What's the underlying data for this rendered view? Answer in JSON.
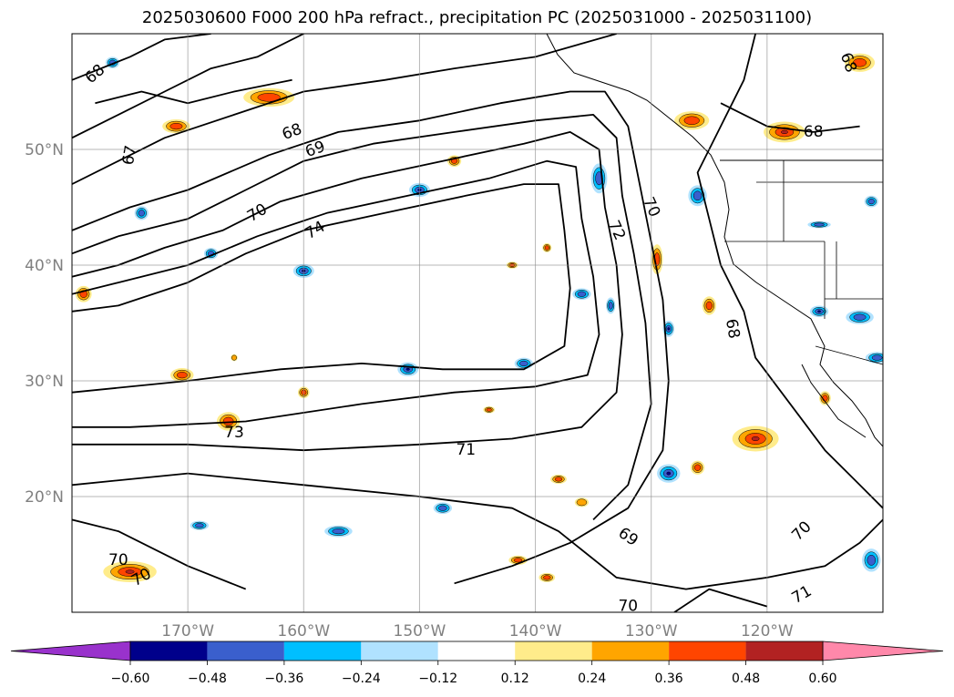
{
  "chart_data": {
    "type": "heatmap",
    "title": "2025030600 F000 200 hPa refract., precipitation PC (2025031000 - 2025031100)",
    "projection": "PlateCarree",
    "extent": {
      "lon": [
        -180,
        -110
      ],
      "lat": [
        10,
        60
      ]
    },
    "grid": true,
    "lat_ticks": [
      {
        "value": 20,
        "label": "20°N"
      },
      {
        "value": 30,
        "label": "30°N"
      },
      {
        "value": 40,
        "label": "40°N"
      },
      {
        "value": 50,
        "label": "50°N"
      }
    ],
    "lon_ticks": [
      {
        "value": -170,
        "label": "170°W"
      },
      {
        "value": -160,
        "label": "160°W"
      },
      {
        "value": -150,
        "label": "150°W"
      },
      {
        "value": -140,
        "label": "140°W"
      },
      {
        "value": -130,
        "label": "130°W"
      },
      {
        "value": -120,
        "label": "120°W"
      }
    ],
    "colorbar": {
      "levels": [
        -0.72,
        -0.6,
        -0.48,
        -0.36,
        -0.24,
        -0.12,
        0.12,
        0.24,
        0.36,
        0.48,
        0.6,
        0.72
      ],
      "tick_values": [
        -0.6,
        -0.48,
        -0.36,
        -0.24,
        -0.12,
        0.12,
        0.24,
        0.36,
        0.48,
        0.6
      ],
      "tick_labels": [
        "−0.60",
        "−0.48",
        "−0.36",
        "−0.24",
        "−0.12",
        "0.12",
        "0.24",
        "0.36",
        "0.48",
        "0.60"
      ],
      "under_color": "#9932cc",
      "over_color": "#ff88aa",
      "colors": [
        "#9932cc",
        "#00008b",
        "#3a5fcd",
        "#00bfff",
        "#b0e2ff",
        "#ffffff",
        "#ffec8b",
        "#ffa500",
        "#ff4500",
        "#b22222",
        "#ff88aa"
      ],
      "extend": "both"
    },
    "contour_labels": [
      {
        "text": "68",
        "lon": -178,
        "lat": 56.5,
        "rot": -40
      },
      {
        "text": "67",
        "lon": -175,
        "lat": 49.5,
        "rot": -80
      },
      {
        "text": "68",
        "lon": -161,
        "lat": 51.5,
        "rot": -20
      },
      {
        "text": "69",
        "lon": -159,
        "lat": 50.0,
        "rot": -20
      },
      {
        "text": "70",
        "lon": -164,
        "lat": 44.5,
        "rot": -30
      },
      {
        "text": "74",
        "lon": -159,
        "lat": 43.0,
        "rot": -30
      },
      {
        "text": "72",
        "lon": -133,
        "lat": 43.0,
        "rot": 65
      },
      {
        "text": "70",
        "lon": -130,
        "lat": 45.0,
        "rot": 65
      },
      {
        "text": "68",
        "lon": -116,
        "lat": 51.5,
        "rot": 0
      },
      {
        "text": "68",
        "lon": -113,
        "lat": 57.5,
        "rot": 70
      },
      {
        "text": "68",
        "lon": -123,
        "lat": 34.5,
        "rot": 80
      },
      {
        "text": "73",
        "lon": -166,
        "lat": 25.5,
        "rot": 0
      },
      {
        "text": "71",
        "lon": -146,
        "lat": 24.0,
        "rot": 0
      },
      {
        "text": "69",
        "lon": -132,
        "lat": 16.5,
        "rot": 35
      },
      {
        "text": "70",
        "lon": -132,
        "lat": 10.5,
        "rot": 0
      },
      {
        "text": "70",
        "lon": -117,
        "lat": 17.0,
        "rot": -45
      },
      {
        "text": "71",
        "lon": -117,
        "lat": 11.5,
        "rot": -30
      },
      {
        "text": "70",
        "lon": -176,
        "lat": 14.5,
        "rot": 0
      },
      {
        "text": "70",
        "lon": -174,
        "lat": 13.0,
        "rot": -30
      }
    ],
    "contour_lines": [
      [
        [
          -180,
          56
        ],
        [
          -175,
          58
        ],
        [
          -172,
          59.5
        ],
        [
          -168,
          60
        ]
      ],
      [
        [
          -180,
          51
        ],
        [
          -176,
          53
        ],
        [
          -172,
          55
        ],
        [
          -168,
          57
        ],
        [
          -164,
          58
        ],
        [
          -160,
          60
        ]
      ],
      [
        [
          -180,
          47
        ],
        [
          -176,
          49
        ],
        [
          -172,
          51
        ],
        [
          -166,
          53
        ],
        [
          -160,
          55
        ],
        [
          -153,
          56
        ],
        [
          -147,
          57
        ],
        [
          -140,
          58
        ],
        [
          -133,
          60
        ]
      ],
      [
        [
          -180,
          43
        ],
        [
          -175,
          45
        ],
        [
          -170,
          46.5
        ],
        [
          -163,
          49.5
        ],
        [
          -157,
          51.5
        ],
        [
          -150,
          52.5
        ],
        [
          -143,
          54
        ],
        [
          -137,
          55
        ],
        [
          -134,
          55
        ],
        [
          -132,
          52
        ],
        [
          -131,
          47
        ],
        [
          -130,
          42
        ],
        [
          -129,
          37
        ],
        [
          -128.5,
          30
        ],
        [
          -129,
          24
        ],
        [
          -132,
          19
        ],
        [
          -137,
          16
        ],
        [
          -142,
          14
        ],
        [
          -147,
          12.5
        ]
      ],
      [
        [
          -180,
          41
        ],
        [
          -176,
          42.5
        ],
        [
          -170,
          44
        ],
        [
          -165,
          46.5
        ],
        [
          -160,
          49
        ],
        [
          -154,
          50.5
        ],
        [
          -147,
          51.5
        ],
        [
          -140,
          52.5
        ],
        [
          -135,
          53
        ],
        [
          -133,
          51
        ],
        [
          -132.5,
          46
        ],
        [
          -131.5,
          41
        ],
        [
          -130.5,
          35
        ],
        [
          -130,
          28
        ],
        [
          -132,
          21
        ],
        [
          -135,
          18
        ]
      ],
      [
        [
          -180,
          39
        ],
        [
          -176,
          40
        ],
        [
          -172,
          41.5
        ],
        [
          -167,
          43
        ],
        [
          -162,
          45.5
        ],
        [
          -155,
          47.5
        ],
        [
          -148,
          49
        ],
        [
          -141,
          50.5
        ],
        [
          -137,
          51.5
        ],
        [
          -134.5,
          50
        ],
        [
          -134,
          45
        ],
        [
          -133,
          40
        ],
        [
          -132.5,
          34
        ],
        [
          -133,
          29
        ],
        [
          -136,
          26
        ],
        [
          -142,
          25
        ],
        [
          -150,
          24.5
        ],
        [
          -160,
          24
        ],
        [
          -170,
          24.5
        ],
        [
          -180,
          24.5
        ]
      ],
      [
        [
          -180,
          37.5
        ],
        [
          -176,
          38.5
        ],
        [
          -170,
          40
        ],
        [
          -164,
          42.5
        ],
        [
          -158,
          44.5
        ],
        [
          -151,
          46
        ],
        [
          -144,
          47.5
        ],
        [
          -139,
          49
        ],
        [
          -136.5,
          48.5
        ],
        [
          -136,
          44
        ],
        [
          -135,
          39
        ],
        [
          -134.5,
          34
        ],
        [
          -135.5,
          30.5
        ],
        [
          -140,
          29.5
        ],
        [
          -147,
          29
        ],
        [
          -155,
          28
        ],
        [
          -165,
          26.5
        ],
        [
          -175,
          26
        ],
        [
          -180,
          26
        ]
      ],
      [
        [
          -180,
          36
        ],
        [
          -176,
          36.5
        ],
        [
          -170,
          38.5
        ],
        [
          -165,
          41
        ],
        [
          -160,
          43
        ],
        [
          -153,
          44.5
        ],
        [
          -146,
          46
        ],
        [
          -141,
          47
        ],
        [
          -138,
          47
        ],
        [
          -137.5,
          43
        ],
        [
          -137,
          38
        ],
        [
          -137.5,
          33
        ],
        [
          -141,
          31
        ],
        [
          -148,
          31
        ],
        [
          -155,
          31.5
        ],
        [
          -162,
          31
        ],
        [
          -170,
          30
        ],
        [
          -180,
          29
        ]
      ],
      [
        [
          -178,
          54
        ],
        [
          -174,
          55
        ],
        [
          -170,
          54
        ],
        [
          -166,
          55
        ],
        [
          -161,
          56
        ]
      ],
      [
        [
          -121,
          60
        ],
        [
          -122,
          56
        ],
        [
          -124,
          52
        ],
        [
          -126,
          48
        ],
        [
          -125,
          44
        ],
        [
          -124,
          40
        ],
        [
          -122,
          36
        ],
        [
          -121,
          32
        ],
        [
          -118,
          28
        ],
        [
          -115,
          24
        ],
        [
          -112,
          21
        ],
        [
          -110,
          19
        ]
      ],
      [
        [
          -124,
          54
        ],
        [
          -120,
          52
        ],
        [
          -116,
          51.5
        ],
        [
          -112,
          52
        ]
      ],
      [
        [
          -180,
          21
        ],
        [
          -170,
          22
        ],
        [
          -160,
          21
        ],
        [
          -150,
          20
        ],
        [
          -142,
          19
        ],
        [
          -138,
          17
        ],
        [
          -133,
          13
        ],
        [
          -127,
          12
        ],
        [
          -120,
          13
        ],
        [
          -115,
          14
        ],
        [
          -112,
          16
        ],
        [
          -110,
          18
        ]
      ],
      [
        [
          -180,
          18
        ],
        [
          -176,
          17
        ],
        [
          -170,
          14
        ],
        [
          -165,
          12
        ]
      ],
      [
        [
          -128,
          10
        ],
        [
          -125,
          12
        ],
        [
          -120,
          10.5
        ]
      ]
    ],
    "precip_blobs": [
      {
        "lon": -163,
        "lat": 54.5,
        "rx": 2.2,
        "ry": 0.8,
        "v": 0.4
      },
      {
        "lon": -171,
        "lat": 52.0,
        "rx": 1.2,
        "ry": 0.6,
        "v": 0.36
      },
      {
        "lon": -126.5,
        "lat": 52.5,
        "rx": 1.5,
        "ry": 0.8,
        "v": 0.4
      },
      {
        "lon": -118.5,
        "lat": 51.5,
        "rx": 1.8,
        "ry": 0.9,
        "v": 0.48
      },
      {
        "lon": -112,
        "lat": 57.5,
        "rx": 1.3,
        "ry": 0.8,
        "v": 0.4
      },
      {
        "lon": -147,
        "lat": 49.0,
        "rx": 0.6,
        "ry": 0.5,
        "v": 0.36
      },
      {
        "lon": -134.5,
        "lat": 47.5,
        "rx": 0.7,
        "ry": 1.3,
        "v": -0.4
      },
      {
        "lon": -150,
        "lat": 46.5,
        "rx": 0.9,
        "ry": 0.6,
        "v": -0.48
      },
      {
        "lon": -126,
        "lat": 46.0,
        "rx": 0.8,
        "ry": 0.9,
        "v": -0.4
      },
      {
        "lon": -179,
        "lat": 37.5,
        "rx": 0.7,
        "ry": 0.7,
        "v": 0.4
      },
      {
        "lon": -160,
        "lat": 39.5,
        "rx": 0.9,
        "ry": 0.6,
        "v": -0.48
      },
      {
        "lon": -168,
        "lat": 41.0,
        "rx": 0.6,
        "ry": 0.5,
        "v": -0.36
      },
      {
        "lon": -129.5,
        "lat": 40.5,
        "rx": 0.5,
        "ry": 1.3,
        "v": 0.36
      },
      {
        "lon": -136,
        "lat": 37.5,
        "rx": 0.8,
        "ry": 0.5,
        "v": -0.36
      },
      {
        "lon": -125,
        "lat": 36.5,
        "rx": 0.6,
        "ry": 0.8,
        "v": 0.36
      },
      {
        "lon": -128.5,
        "lat": 34.5,
        "rx": 0.5,
        "ry": 0.7,
        "v": -0.48
      },
      {
        "lon": -151,
        "lat": 31.0,
        "rx": 0.9,
        "ry": 0.6,
        "v": -0.48
      },
      {
        "lon": -141,
        "lat": 31.5,
        "rx": 0.8,
        "ry": 0.5,
        "v": -0.36
      },
      {
        "lon": -170.5,
        "lat": 30.5,
        "rx": 1.0,
        "ry": 0.6,
        "v": 0.36
      },
      {
        "lon": -160,
        "lat": 29.0,
        "rx": 0.5,
        "ry": 0.5,
        "v": 0.36
      },
      {
        "lon": -166.5,
        "lat": 26.5,
        "rx": 1.0,
        "ry": 0.8,
        "v": 0.4
      },
      {
        "lon": -112,
        "lat": 35.5,
        "rx": 1.2,
        "ry": 0.6,
        "v": -0.4
      },
      {
        "lon": -110.5,
        "lat": 32.0,
        "rx": 1.0,
        "ry": 0.5,
        "v": -0.36
      },
      {
        "lon": -121,
        "lat": 25.0,
        "rx": 2.0,
        "ry": 1.1,
        "v": 0.52
      },
      {
        "lon": -128.5,
        "lat": 22.0,
        "rx": 1.0,
        "ry": 0.8,
        "v": -0.48
      },
      {
        "lon": -126,
        "lat": 22.5,
        "rx": 0.6,
        "ry": 0.6,
        "v": 0.36
      },
      {
        "lon": -138,
        "lat": 21.5,
        "rx": 0.7,
        "ry": 0.4,
        "v": 0.36
      },
      {
        "lon": -136,
        "lat": 19.5,
        "rx": 0.6,
        "ry": 0.4,
        "v": 0.3
      },
      {
        "lon": -148,
        "lat": 19.0,
        "rx": 0.8,
        "ry": 0.5,
        "v": -0.36
      },
      {
        "lon": -157,
        "lat": 17.0,
        "rx": 1.2,
        "ry": 0.5,
        "v": -0.36
      },
      {
        "lon": -169,
        "lat": 17.5,
        "rx": 0.8,
        "ry": 0.4,
        "v": -0.36
      },
      {
        "lon": -175,
        "lat": 13.5,
        "rx": 2.3,
        "ry": 0.9,
        "v": 0.48
      },
      {
        "lon": -141.5,
        "lat": 14.5,
        "rx": 0.8,
        "ry": 0.4,
        "v": 0.36
      },
      {
        "lon": -139,
        "lat": 13.0,
        "rx": 0.7,
        "ry": 0.4,
        "v": 0.36
      },
      {
        "lon": -111,
        "lat": 14.5,
        "rx": 0.8,
        "ry": 1.0,
        "v": -0.4
      },
      {
        "lon": -176.5,
        "lat": 57.5,
        "rx": 0.6,
        "ry": 0.5,
        "v": -0.36
      },
      {
        "lon": -111,
        "lat": 45.5,
        "rx": 0.6,
        "ry": 0.5,
        "v": -0.36
      },
      {
        "lon": -115.5,
        "lat": 36.0,
        "rx": 0.8,
        "ry": 0.5,
        "v": -0.48
      },
      {
        "lon": -115.5,
        "lat": 43.5,
        "rx": 1.0,
        "ry": 0.3,
        "v": -0.36
      },
      {
        "lon": -174,
        "lat": 44.5,
        "rx": 0.6,
        "ry": 0.6,
        "v": -0.36
      },
      {
        "lon": -133.5,
        "lat": 36.5,
        "rx": 0.4,
        "ry": 0.7,
        "v": -0.36
      },
      {
        "lon": -166,
        "lat": 32.0,
        "rx": 0.3,
        "ry": 0.3,
        "v": 0.3
      },
      {
        "lon": -144,
        "lat": 27.5,
        "rx": 0.5,
        "ry": 0.3,
        "v": 0.36
      },
      {
        "lon": -115,
        "lat": 28.5,
        "rx": 0.5,
        "ry": 0.6,
        "v": 0.36
      },
      {
        "lon": -142,
        "lat": 40.0,
        "rx": 0.5,
        "ry": 0.3,
        "v": 0.36
      },
      {
        "lon": -139,
        "lat": 41.5,
        "rx": 0.4,
        "ry": 0.4,
        "v": 0.36
      }
    ]
  }
}
